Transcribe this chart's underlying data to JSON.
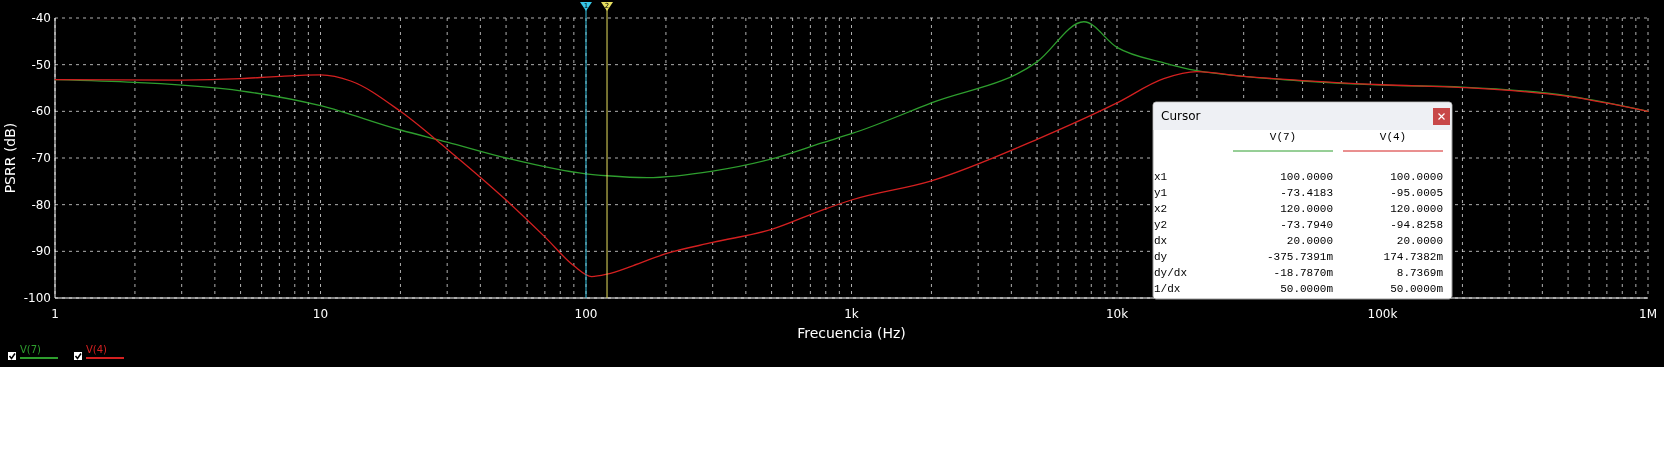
{
  "chart_data": {
    "type": "line",
    "ylabel": "PSRR (dB)",
    "xlabel": "Frecuencia (Hz)",
    "log": "x",
    "xlim": [
      1,
      1000000
    ],
    "ylim": [
      -100,
      -40
    ],
    "xticks": [
      {
        "value": 1,
        "label": "1"
      },
      {
        "value": 2,
        "label": null
      },
      {
        "value": 3,
        "label": null
      },
      {
        "value": 4,
        "label": null
      },
      {
        "value": 5,
        "label": null
      },
      {
        "value": 6,
        "label": null
      },
      {
        "value": 7,
        "label": null
      },
      {
        "value": 8,
        "label": null
      },
      {
        "value": 9,
        "label": null
      },
      {
        "value": 10,
        "label": "10"
      },
      {
        "value": 20,
        "label": null
      },
      {
        "value": 30,
        "label": null
      },
      {
        "value": 40,
        "label": null
      },
      {
        "value": 50,
        "label": null
      },
      {
        "value": 60,
        "label": null
      },
      {
        "value": 70,
        "label": null
      },
      {
        "value": 80,
        "label": null
      },
      {
        "value": 90,
        "label": null
      },
      {
        "value": 100,
        "label": "100"
      },
      {
        "value": 200,
        "label": null
      },
      {
        "value": 300,
        "label": null
      },
      {
        "value": 400,
        "label": null
      },
      {
        "value": 500,
        "label": null
      },
      {
        "value": 600,
        "label": null
      },
      {
        "value": 700,
        "label": null
      },
      {
        "value": 800,
        "label": null
      },
      {
        "value": 900,
        "label": null
      },
      {
        "value": 1000,
        "label": "1k"
      },
      {
        "value": 2000,
        "label": null
      },
      {
        "value": 3000,
        "label": null
      },
      {
        "value": 4000,
        "label": null
      },
      {
        "value": 5000,
        "label": null
      },
      {
        "value": 6000,
        "label": null
      },
      {
        "value": 7000,
        "label": null
      },
      {
        "value": 8000,
        "label": null
      },
      {
        "value": 9000,
        "label": null
      },
      {
        "value": 10000,
        "label": "10k"
      },
      {
        "value": 20000,
        "label": null
      },
      {
        "value": 30000,
        "label": null
      },
      {
        "value": 40000,
        "label": null
      },
      {
        "value": 50000,
        "label": null
      },
      {
        "value": 60000,
        "label": null
      },
      {
        "value": 70000,
        "label": null
      },
      {
        "value": 80000,
        "label": null
      },
      {
        "value": 90000,
        "label": null
      },
      {
        "value": 100000,
        "label": "100k"
      },
      {
        "value": 200000,
        "label": null
      },
      {
        "value": 300000,
        "label": null
      },
      {
        "value": 400000,
        "label": null
      },
      {
        "value": 500000,
        "label": null
      },
      {
        "value": 600000,
        "label": null
      },
      {
        "value": 700000,
        "label": null
      },
      {
        "value": 800000,
        "label": null
      },
      {
        "value": 900000,
        "label": null
      },
      {
        "value": 1000000,
        "label": "1M"
      }
    ],
    "yticks": [
      -100,
      -90,
      -80,
      -70,
      -60,
      -50,
      -40
    ],
    "grid": true,
    "line_style": "solid",
    "legend": "bottom left",
    "series": [
      {
        "name": "V(7)",
        "color": "#2e9e2e",
        "x": [
          1,
          2,
          5,
          10,
          20,
          30,
          50,
          100,
          120,
          170,
          300,
          500,
          780,
          1000,
          2000,
          5000,
          7500,
          10000,
          15000,
          20000,
          30000,
          50000,
          100000,
          200000,
          500000,
          1000000
        ],
        "values": [
          -53.2,
          -53.8,
          -55.6,
          -58.8,
          -64,
          -66.6,
          -70,
          -73.4,
          -73.8,
          -74.2,
          -72.8,
          -70.2,
          -66.7,
          -64.8,
          -58.2,
          -49.4,
          -40.8,
          -46.3,
          -49.6,
          -51.3,
          -52.5,
          -53.5,
          -54.4,
          -54.8,
          -56.7,
          -60
        ]
      },
      {
        "name": "V(4)",
        "color": "#d42020",
        "x": [
          1,
          3,
          5,
          7,
          10,
          13,
          20,
          30,
          50,
          70,
          90,
          105,
          120,
          150,
          200,
          300,
          500,
          780,
          1000,
          2000,
          5000,
          10000,
          15000,
          20000,
          30000,
          50000,
          100000,
          200000,
          500000,
          1000000
        ],
        "values": [
          -53.2,
          -53.3,
          -53,
          -52.5,
          -52.2,
          -53.5,
          -60,
          -68.1,
          -79,
          -86.9,
          -93.1,
          -95.4,
          -94.9,
          -93.1,
          -90.5,
          -88.1,
          -85.3,
          -81.1,
          -79,
          -74.9,
          -66,
          -58.2,
          -53,
          -51.5,
          -52.5,
          -53.4,
          -54.3,
          -54.9,
          -56.8,
          -60
        ]
      }
    ],
    "ref_lines": [
      {
        "axis": "x",
        "value": 100,
        "color": "#38c8e8"
      },
      {
        "axis": "x",
        "value": 120,
        "color": "#e8e060"
      }
    ],
    "annotations": [
      {
        "text": "1",
        "x": 100
      },
      {
        "text": "2",
        "x": 120
      },
      "Cursor",
      "\tV(7)\tV(4)",
      "x1\t100.0000\t100.0000",
      "y1\t-73.4183\t-95.0005",
      "x2\t120.0000\t120.0000",
      "y2\t-73.7940\t-94.8258",
      "dx\t20.0000\t20.0000",
      "dy\t-375.7391m\t174.7382m",
      "dy/dx\t-18.7870m\t8.7369m",
      "1/dx\t50.0000m\t50.0000m"
    ]
  }
}
